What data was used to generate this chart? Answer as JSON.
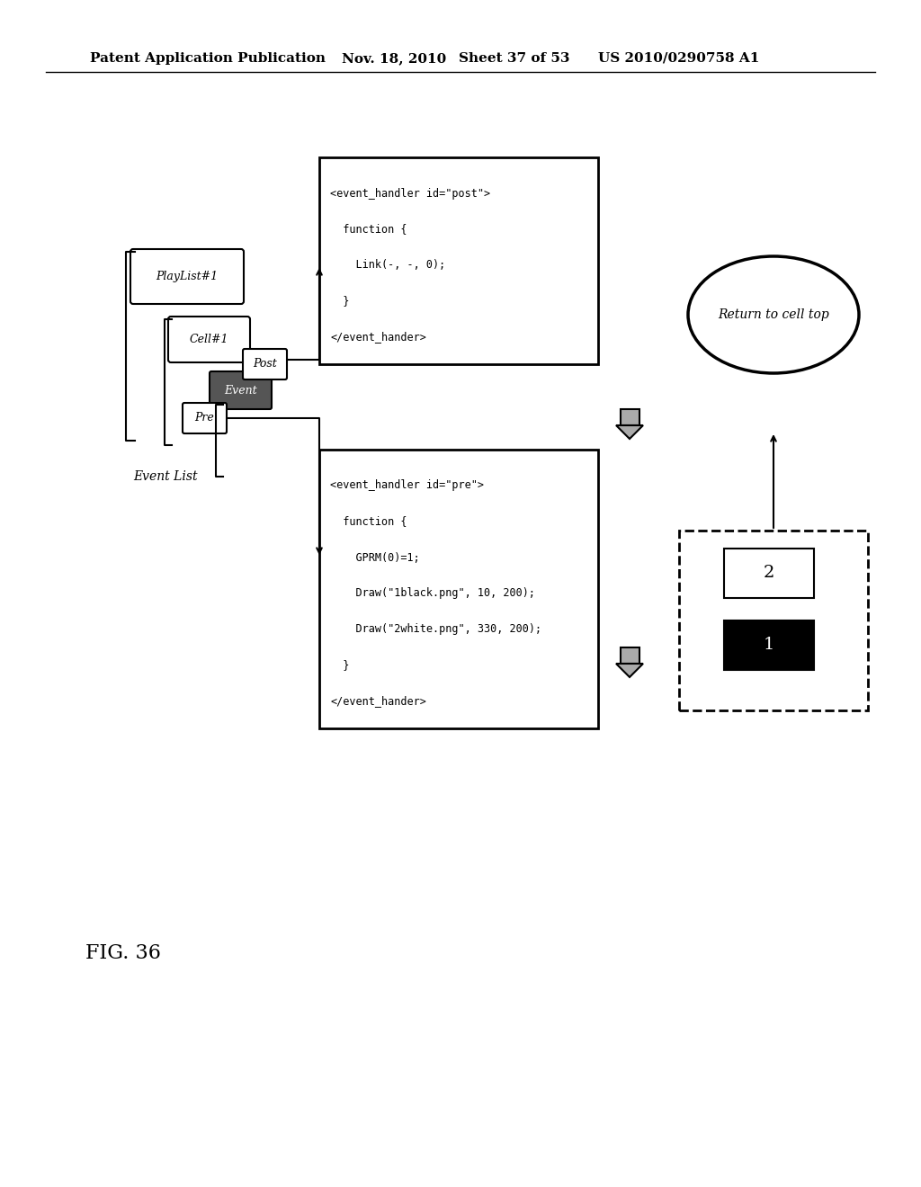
{
  "bg_color": "#ffffff",
  "header_text": "Patent Application Publication",
  "header_date": "Nov. 18, 2010",
  "header_sheet": "Sheet 37 of 53",
  "header_patent": "US 2010/0290758 A1",
  "fig_label": "FIG. 36",
  "pre_box_text": "<event_handler id=\"pre\">\n  function {\n    GPRM(0)=1;\n    Draw(\"1black.png\", 10, 200);\n    Draw(\"2white.png\", 330, 200);\n  }\n</event_hander>",
  "post_box_text": "<event_handler id=\"post\">\n  function {\n    Link(-, -, 0);\n  }\n</event_hander>",
  "playlist_label": "PlayList#1",
  "cell_label": "Cell#1",
  "event_label": "Event",
  "pre_label": "Pre",
  "post_label": "Post",
  "event_list_label": "Event List",
  "ellipse_text": "Return to cell top"
}
